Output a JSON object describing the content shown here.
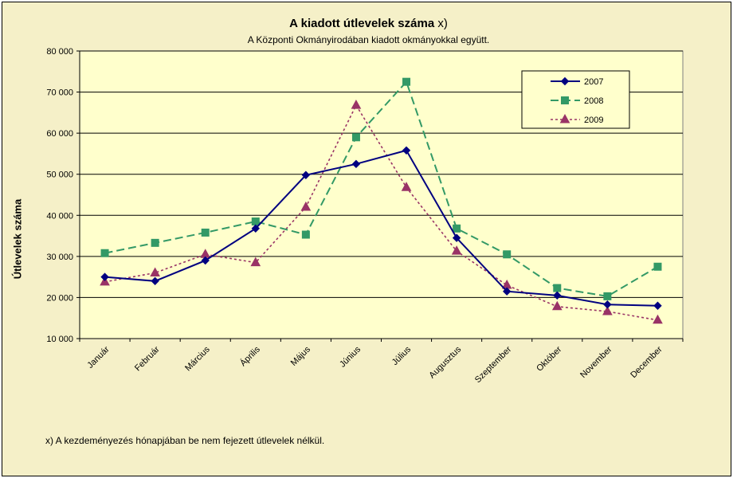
{
  "chart_data": {
    "type": "line",
    "title": "A  kiadott útlevelek száma",
    "title_suffix": "x)",
    "subtitle": "A Központi Okmányirodában kiadott okmányokkal együtt.",
    "xlabel": "",
    "ylabel": "Útlevelek száma",
    "ylim": [
      10000,
      80000
    ],
    "yticks": [
      10000,
      20000,
      30000,
      40000,
      50000,
      60000,
      70000,
      80000
    ],
    "ytick_labels": [
      "10 000",
      "20 000",
      "30 000",
      "40 000",
      "50 000",
      "60 000",
      "70 000",
      "80 000"
    ],
    "categories": [
      "Január",
      "Február",
      "Március",
      "Április",
      "Május",
      "Június",
      "Július",
      "Augusztus",
      "Szeptember",
      "Október",
      "November",
      "December"
    ],
    "grid": true,
    "legend_position": "top-right",
    "footnote": "x) A kezdeményezés hónapjában be nem fejezett útlevelek nélkül.",
    "series": [
      {
        "name": "2007",
        "color": "#000080",
        "marker": "diamond",
        "dash": "solid",
        "values": [
          25000,
          24000,
          29000,
          36800,
          49800,
          52500,
          55800,
          34500,
          21500,
          20500,
          18300,
          18000
        ]
      },
      {
        "name": "2008",
        "color": "#339966",
        "marker": "square",
        "dash": "dashed",
        "values": [
          30800,
          33300,
          35800,
          38500,
          35300,
          59000,
          72500,
          36800,
          30500,
          22300,
          20300,
          27500
        ]
      },
      {
        "name": "2009",
        "color": "#993366",
        "marker": "triangle",
        "dash": "dotted",
        "values": [
          23800,
          26000,
          30500,
          28500,
          42000,
          66800,
          46800,
          31300,
          23000,
          17800,
          16600,
          14500
        ]
      }
    ]
  }
}
